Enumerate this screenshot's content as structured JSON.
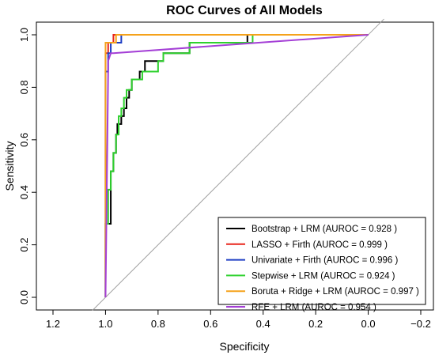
{
  "chart_data": {
    "type": "line",
    "title": "ROC Curves of All Models",
    "xlabel": "Specificity",
    "ylabel": "Sensitivity",
    "x_reversed": true,
    "xlim": [
      1.2,
      -0.2
    ],
    "ylim": [
      0.0,
      1.0
    ],
    "x_ticks": [
      "1.2",
      "1.0",
      "0.8",
      "0.6",
      "0.4",
      "0.2",
      "0.0",
      "−0.2"
    ],
    "x_tick_values": [
      1.2,
      1.0,
      0.8,
      0.6,
      0.4,
      0.2,
      0.0,
      -0.2
    ],
    "y_ticks": [
      "0.0",
      "0.2",
      "0.4",
      "0.6",
      "0.8",
      "1.0"
    ],
    "y_tick_values": [
      0.0,
      0.2,
      0.4,
      0.6,
      0.8,
      1.0
    ],
    "reference_line": {
      "from": [
        1.0,
        0.0
      ],
      "to": [
        0.0,
        1.0
      ],
      "color": "#a0a0a0"
    },
    "legend_position": "bottom-right",
    "series": [
      {
        "name": "Bootstrap + LRM (AUROC = 0.928 )",
        "color": "#000000",
        "points": [
          [
            1.0,
            0.0
          ],
          [
            1.0,
            0.28
          ],
          [
            0.98,
            0.28
          ],
          [
            0.98,
            0.48
          ],
          [
            0.97,
            0.48
          ],
          [
            0.97,
            0.55
          ],
          [
            0.96,
            0.55
          ],
          [
            0.96,
            0.62
          ],
          [
            0.955,
            0.62
          ],
          [
            0.955,
            0.66
          ],
          [
            0.94,
            0.66
          ],
          [
            0.94,
            0.69
          ],
          [
            0.93,
            0.69
          ],
          [
            0.93,
            0.72
          ],
          [
            0.92,
            0.72
          ],
          [
            0.92,
            0.76
          ],
          [
            0.91,
            0.76
          ],
          [
            0.91,
            0.79
          ],
          [
            0.9,
            0.79
          ],
          [
            0.9,
            0.83
          ],
          [
            0.87,
            0.83
          ],
          [
            0.87,
            0.86
          ],
          [
            0.85,
            0.86
          ],
          [
            0.85,
            0.9
          ],
          [
            0.78,
            0.9
          ],
          [
            0.78,
            0.93
          ],
          [
            0.68,
            0.93
          ],
          [
            0.68,
            0.97
          ],
          [
            0.46,
            0.97
          ],
          [
            0.46,
            1.0
          ],
          [
            0.0,
            1.0
          ]
        ]
      },
      {
        "name": "LASSO + Firth (AUROC = 0.999 )",
        "color": "#e8251b",
        "points": [
          [
            1.0,
            0.0
          ],
          [
            1.0,
            0.93
          ],
          [
            0.99,
            0.93
          ],
          [
            0.99,
            0.97
          ],
          [
            0.97,
            0.97
          ],
          [
            0.97,
            1.0
          ],
          [
            0.0,
            1.0
          ]
        ]
      },
      {
        "name": "Univariate + Firth (AUROC = 0.996 )",
        "color": "#1f3fc4",
        "points": [
          [
            1.0,
            0.0
          ],
          [
            1.0,
            0.86
          ],
          [
            0.99,
            0.86
          ],
          [
            0.99,
            0.93
          ],
          [
            0.98,
            0.93
          ],
          [
            0.98,
            0.97
          ],
          [
            0.94,
            0.97
          ],
          [
            0.94,
            1.0
          ],
          [
            0.0,
            1.0
          ]
        ]
      },
      {
        "name": "Stepwise + LRM (AUROC = 0.924 )",
        "color": "#2ed12e",
        "points": [
          [
            1.0,
            0.0
          ],
          [
            1.0,
            0.28
          ],
          [
            0.99,
            0.28
          ],
          [
            0.99,
            0.41
          ],
          [
            0.98,
            0.41
          ],
          [
            0.98,
            0.48
          ],
          [
            0.97,
            0.48
          ],
          [
            0.97,
            0.55
          ],
          [
            0.96,
            0.55
          ],
          [
            0.96,
            0.62
          ],
          [
            0.95,
            0.62
          ],
          [
            0.95,
            0.69
          ],
          [
            0.94,
            0.69
          ],
          [
            0.94,
            0.72
          ],
          [
            0.93,
            0.72
          ],
          [
            0.93,
            0.76
          ],
          [
            0.92,
            0.76
          ],
          [
            0.92,
            0.79
          ],
          [
            0.9,
            0.79
          ],
          [
            0.9,
            0.83
          ],
          [
            0.86,
            0.83
          ],
          [
            0.86,
            0.86
          ],
          [
            0.8,
            0.86
          ],
          [
            0.8,
            0.9
          ],
          [
            0.78,
            0.9
          ],
          [
            0.78,
            0.93
          ],
          [
            0.68,
            0.93
          ],
          [
            0.68,
            0.97
          ],
          [
            0.44,
            0.97
          ],
          [
            0.44,
            1.0
          ],
          [
            0.0,
            1.0
          ]
        ]
      },
      {
        "name": "Boruta + Ridge + LRM (AUROC = 0.997 )",
        "color": "#f5a21b",
        "points": [
          [
            1.0,
            0.0
          ],
          [
            1.0,
            0.97
          ],
          [
            0.96,
            0.97
          ],
          [
            0.96,
            1.0
          ],
          [
            0.0,
            1.0
          ]
        ]
      },
      {
        "name": "RFE + LRM (AUROC = 0.954 )",
        "color": "#a43fd6",
        "points": [
          [
            1.0,
            0.0
          ],
          [
            0.99,
            0.86
          ],
          [
            0.99,
            0.9
          ],
          [
            0.98,
            0.93
          ],
          [
            0.97,
            0.93
          ],
          [
            0.0,
            1.0
          ]
        ]
      }
    ]
  }
}
